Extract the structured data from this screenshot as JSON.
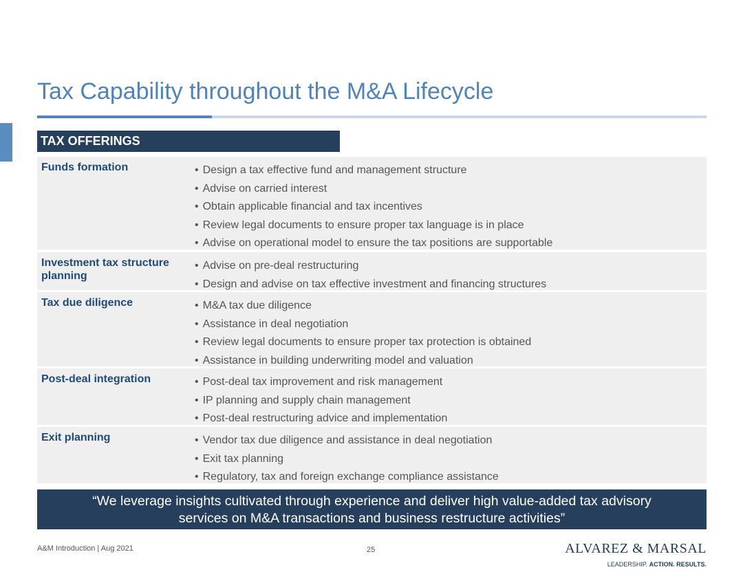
{
  "slide": {
    "title": "Tax Capability throughout the M&A Lifecycle",
    "section_heading": "TAX OFFERINGS"
  },
  "offerings": [
    {
      "label": "Funds formation",
      "bullets": [
        "Design a tax effective fund and management structure",
        "Advise on carried interest",
        "Obtain applicable financial and tax incentives",
        "Review legal documents to ensure proper tax language is in place",
        "Advise on operational model to ensure the tax positions are supportable"
      ]
    },
    {
      "label": "Investment tax structure planning",
      "bullets": [
        "Advise on pre-deal restructuring",
        "Design and advise on tax effective investment and financing structures"
      ]
    },
    {
      "label": "Tax due diligence",
      "bullets": [
        "M&A tax due diligence",
        "Assistance in deal negotiation",
        "Review legal documents to ensure proper tax protection is obtained",
        "Assistance in building underwriting model and valuation"
      ]
    },
    {
      "label": "Post-deal integration",
      "bullets": [
        "Post-deal tax improvement and risk management",
        "IP planning and supply chain management",
        "Post-deal restructuring advice and implementation"
      ]
    },
    {
      "label": "Exit planning",
      "bullets": [
        "Vendor tax due diligence and assistance in deal negotiation",
        "Exit tax planning",
        "Regulatory, tax and foreign exchange compliance assistance"
      ]
    }
  ],
  "quote": {
    "line1": "“We leverage insights cultivated through experience and deliver high value-added tax advisory",
    "line2": "services on M&A transactions and business restructure activities”"
  },
  "footer": {
    "left": "A&M Introduction | Aug 2021",
    "page_number": "25"
  },
  "logo": {
    "name": "ALVAREZ & MARSAL",
    "tag_leadership": "LEADERSHIP.",
    "tag_action": "ACTION.",
    "tag_results": "RESULTS."
  },
  "colors": {
    "title": "#4f83b9",
    "dark_navy": "#263f5c",
    "row_label": "#1e4a7c",
    "row_background": "#efefef"
  }
}
